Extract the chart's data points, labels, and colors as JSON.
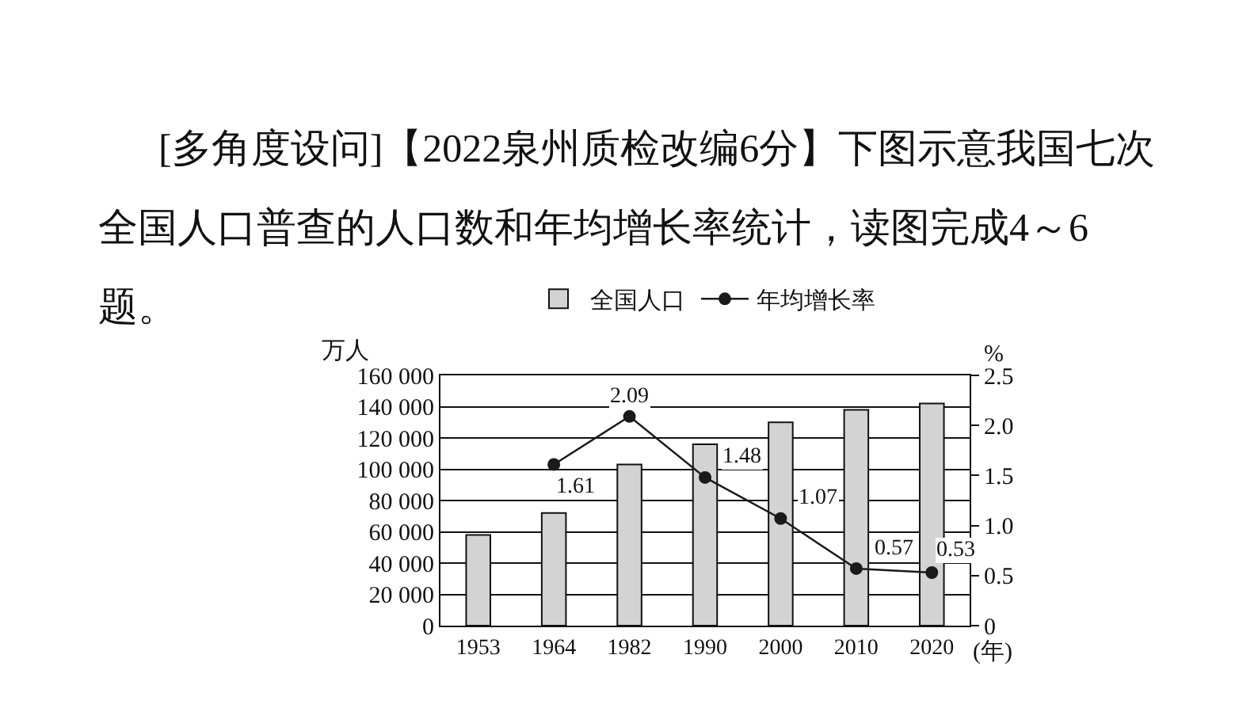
{
  "chart_data": {
    "type": "bar",
    "title": "[多角度设问]【2022泉州质检改编6分】下图示意我国七次全国人口普查的人口数和年均增长率统计，读图完成4～6题。",
    "categories": [
      "1953",
      "1964",
      "1982",
      "1990",
      "2000",
      "2010",
      "2020"
    ],
    "series": [
      {
        "name": "全国人口",
        "color": "#d3d3d3",
        "values": [
          58000,
          72000,
          103000,
          116000,
          130000,
          138000,
          142000
        ]
      },
      {
        "name": "年均增长率",
        "type": "line",
        "axis": "y2",
        "color": "#1a1a1a",
        "values": [
          null,
          1.61,
          2.09,
          1.48,
          1.07,
          0.57,
          0.53
        ],
        "value_labels": [
          null,
          "1.61",
          "2.09",
          "1.48",
          "1.07",
          "0.57",
          "0.53"
        ]
      }
    ],
    "xlabel": "(年)",
    "ylabel": "万人",
    "y2label": "%",
    "ylim": [
      0,
      160000
    ],
    "yticks": [
      0,
      {
        "value": 20000,
        "label": "20 000"
      },
      {
        "value": 40000,
        "label": "40 000"
      },
      {
        "value": 60000,
        "label": "60 000"
      },
      {
        "value": 80000,
        "label": "80 000"
      },
      {
        "value": 100000,
        "label": "100 000"
      },
      {
        "value": 120000,
        "label": "120 000"
      },
      {
        "value": 140000,
        "label": "140 000"
      },
      {
        "value": 160000,
        "label": "160 000"
      }
    ],
    "y2lim": [
      0,
      2.5
    ],
    "y2ticks": [
      0,
      0.5,
      {
        "value": 1,
        "label": "1.0"
      },
      1.5,
      {
        "value": 2,
        "label": "2.0"
      },
      2.5
    ],
    "grid": "y",
    "legend": "top",
    "marker": "circle",
    "line_style": "solid"
  }
}
